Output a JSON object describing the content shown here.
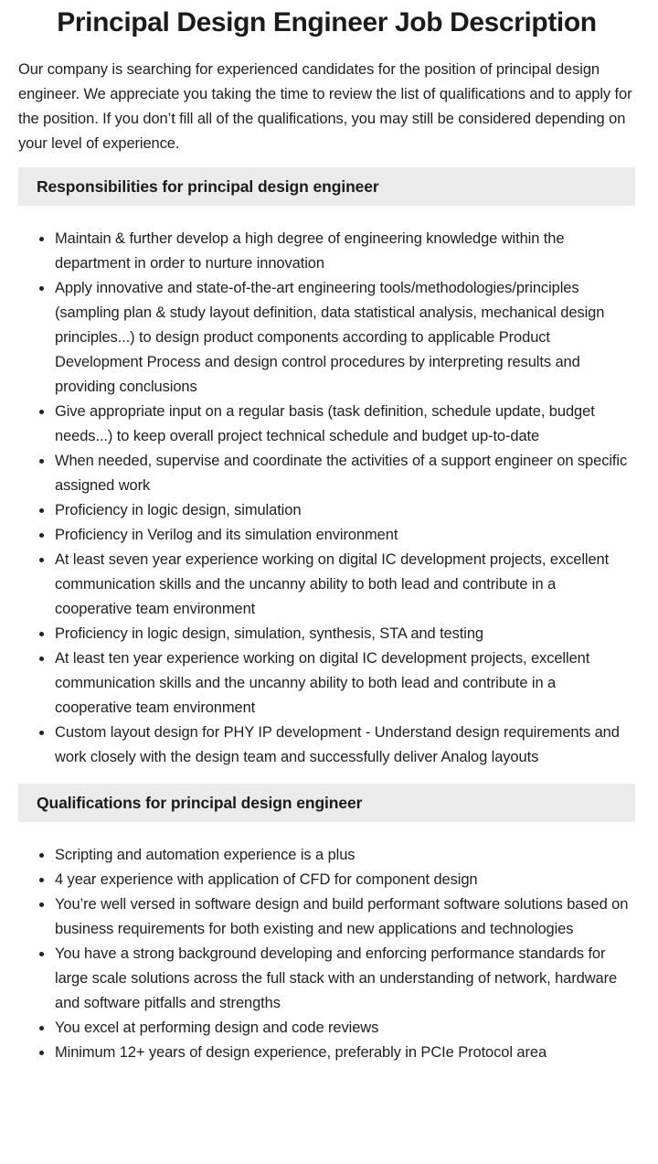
{
  "page": {
    "title": "Principal Design Engineer Job Description",
    "intro": "Our company is searching for experienced candidates for the position of principal design engineer. We appreciate you taking the time to review the list of qualifications and to apply for the position. If you don’t fill all of the qualifications, you may still be considered depending on your level of experience."
  },
  "sections": [
    {
      "heading": "Responsibilities for principal design engineer",
      "items": [
        "Maintain & further develop a high degree of engineering knowledge within the department in order to nurture innovation",
        "Apply innovative and state-of-the-art engineering tools/methodologies/principles (sampling plan & study layout definition, data statistical analysis, mechanical design principles...) to design product components according to applicable Product Development Process and design control procedures by interpreting results and providing conclusions",
        "Give appropriate input on a regular basis (task definition, schedule update, budget needs...) to keep overall project technical schedule and budget up-to-date",
        "When needed, supervise and coordinate the activities of a support engineer on specific assigned work",
        "Proficiency in logic design, simulation",
        "Proficiency in Verilog and its simulation environment",
        "At least seven year experience working on digital IC development projects, excellent communication skills and the uncanny ability to both lead and contribute in a cooperative team environment",
        "Proficiency in logic design, simulation, synthesis, STA and testing",
        "At least ten year experience working on digital IC development projects, excellent communication skills and the uncanny ability to both lead and contribute in a cooperative team environment",
        "Custom layout design for PHY IP development - Understand design requirements and work closely with the design team and successfully deliver Analog layouts"
      ]
    },
    {
      "heading": "Qualifications for principal design engineer",
      "items": [
        "Scripting and automation experience is a plus",
        "4 year experience with application of CFD for component design",
        "You’re well versed in software design and build performant software solutions based on business requirements for both existing and new applications and technologies",
        "You have a strong background developing and enforcing performance standards for large scale solutions across the full stack with an understanding of network, hardware and software pitfalls and strengths",
        "You excel at performing design and code reviews",
        "Minimum 12+ years of design experience, preferably in PCIe Protocol area"
      ]
    }
  ],
  "colors": {
    "background": "#ffffff",
    "text": "#212121",
    "section_header_bg": "#ebebeb"
  }
}
